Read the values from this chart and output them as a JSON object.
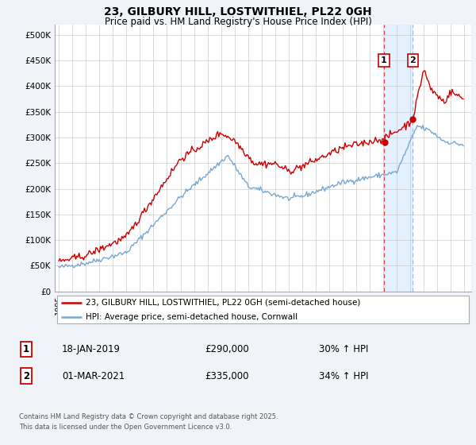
{
  "title_line1": "23, GILBURY HILL, LOSTWITHIEL, PL22 0GH",
  "title_line2": "Price paid vs. HM Land Registry's House Price Index (HPI)",
  "ylim": [
    0,
    520000
  ],
  "yticks": [
    0,
    50000,
    100000,
    150000,
    200000,
    250000,
    300000,
    350000,
    400000,
    450000,
    500000
  ],
  "ytick_labels": [
    "£0",
    "£50K",
    "£100K",
    "£150K",
    "£200K",
    "£250K",
    "£300K",
    "£350K",
    "£400K",
    "£450K",
    "£500K"
  ],
  "red_line_color": "#cc0000",
  "blue_line_color": "#7aa8d0",
  "vline1_color": "#dd4444",
  "vline2_color": "#aabbcc",
  "shade_color": "#ddeeff",
  "marker1_year": 2019.05,
  "marker2_year": 2021.17,
  "legend_label_red": "23, GILBURY HILL, LOSTWITHIEL, PL22 0GH (semi-detached house)",
  "legend_label_blue": "HPI: Average price, semi-detached house, Cornwall",
  "footnote_line1": "Contains HM Land Registry data © Crown copyright and database right 2025.",
  "footnote_line2": "This data is licensed under the Open Government Licence v3.0.",
  "table_row1": [
    "1",
    "18-JAN-2019",
    "£290,000",
    "30% ↑ HPI"
  ],
  "table_row2": [
    "2",
    "01-MAR-2021",
    "£335,000",
    "34% ↑ HPI"
  ],
  "background_color": "#f0f4f8",
  "plot_background": "#ffffff",
  "grid_color": "#cccccc",
  "xlim_left": 1994.7,
  "xlim_right": 2025.5
}
